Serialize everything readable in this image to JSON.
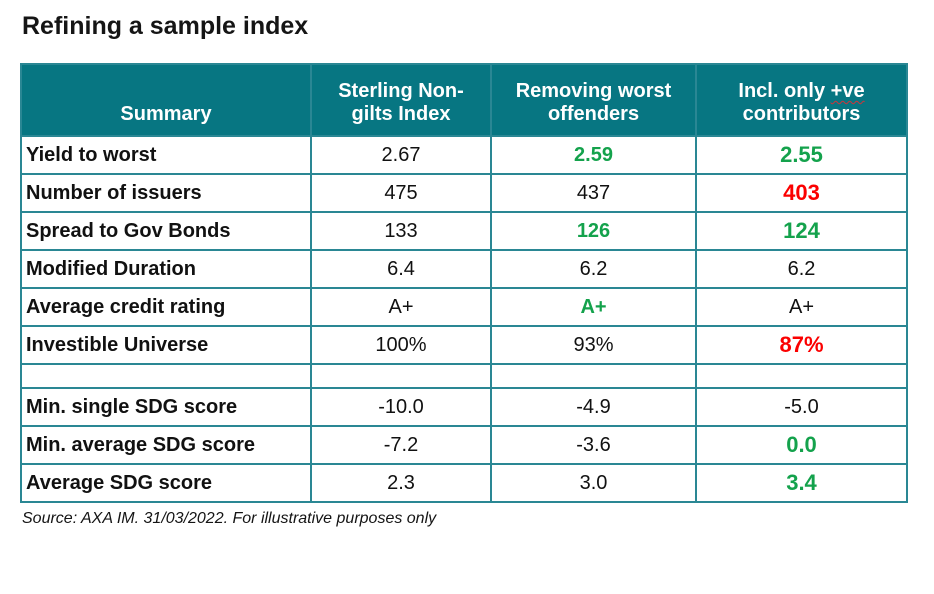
{
  "page": {
    "title": "Refining a sample index",
    "source_note": "Source: AXA IM. 31/03/2022. For illustrative purposes only"
  },
  "colors": {
    "header_teal": "#077682",
    "grid_border_teal": "#2a8794",
    "positive_green": "#14a24c",
    "negative_red": "#fb0000",
    "squiggle_red": "#d13438",
    "text": "#111111"
  },
  "table": {
    "columns": [
      "Summary",
      "Sterling Non-gilts Index",
      "Removing worst offenders",
      "Incl. only +ve contributors"
    ],
    "column4_parts": {
      "prefix": "Incl. only ",
      "underlined": "+ve",
      "suffix": " contributors"
    },
    "rows": [
      {
        "label": "Yield to worst",
        "values": [
          {
            "text": "2.67",
            "style": "plain"
          },
          {
            "text": "2.59",
            "style": "green"
          },
          {
            "text": "2.55",
            "style": "green-big"
          }
        ]
      },
      {
        "label": "Number of issuers",
        "values": [
          {
            "text": "475",
            "style": "plain"
          },
          {
            "text": "437",
            "style": "plain"
          },
          {
            "text": "403",
            "style": "red-big"
          }
        ]
      },
      {
        "label": "Spread to Gov Bonds",
        "values": [
          {
            "text": "133",
            "style": "plain"
          },
          {
            "text": "126",
            "style": "green"
          },
          {
            "text": "124",
            "style": "green-big"
          }
        ]
      },
      {
        "label": "Modified Duration",
        "values": [
          {
            "text": "6.4",
            "style": "plain"
          },
          {
            "text": "6.2",
            "style": "plain"
          },
          {
            "text": "6.2",
            "style": "plain"
          }
        ]
      },
      {
        "label": "Average credit rating",
        "values": [
          {
            "text": "A+",
            "style": "plain"
          },
          {
            "text": "A+",
            "style": "green"
          },
          {
            "text": "A+",
            "style": "plain"
          }
        ]
      },
      {
        "label": "Investible Universe",
        "values": [
          {
            "text": "100%",
            "style": "plain"
          },
          {
            "text": "93%",
            "style": "plain"
          },
          {
            "text": "87%",
            "style": "red-big"
          }
        ]
      },
      {
        "spacer": true
      },
      {
        "label": "Min. single SDG score",
        "values": [
          {
            "text": "-10.0",
            "style": "plain"
          },
          {
            "text": "-4.9",
            "style": "plain"
          },
          {
            "text": "-5.0",
            "style": "plain"
          }
        ]
      },
      {
        "label": "Min. average SDG score",
        "values": [
          {
            "text": "-7.2",
            "style": "plain"
          },
          {
            "text": "-3.6",
            "style": "plain"
          },
          {
            "text": "0.0",
            "style": "green-big"
          }
        ]
      },
      {
        "label": "Average SDG score",
        "values": [
          {
            "text": "2.3",
            "style": "plain"
          },
          {
            "text": "3.0",
            "style": "plain"
          },
          {
            "text": "3.4",
            "style": "green-big"
          }
        ]
      }
    ]
  }
}
